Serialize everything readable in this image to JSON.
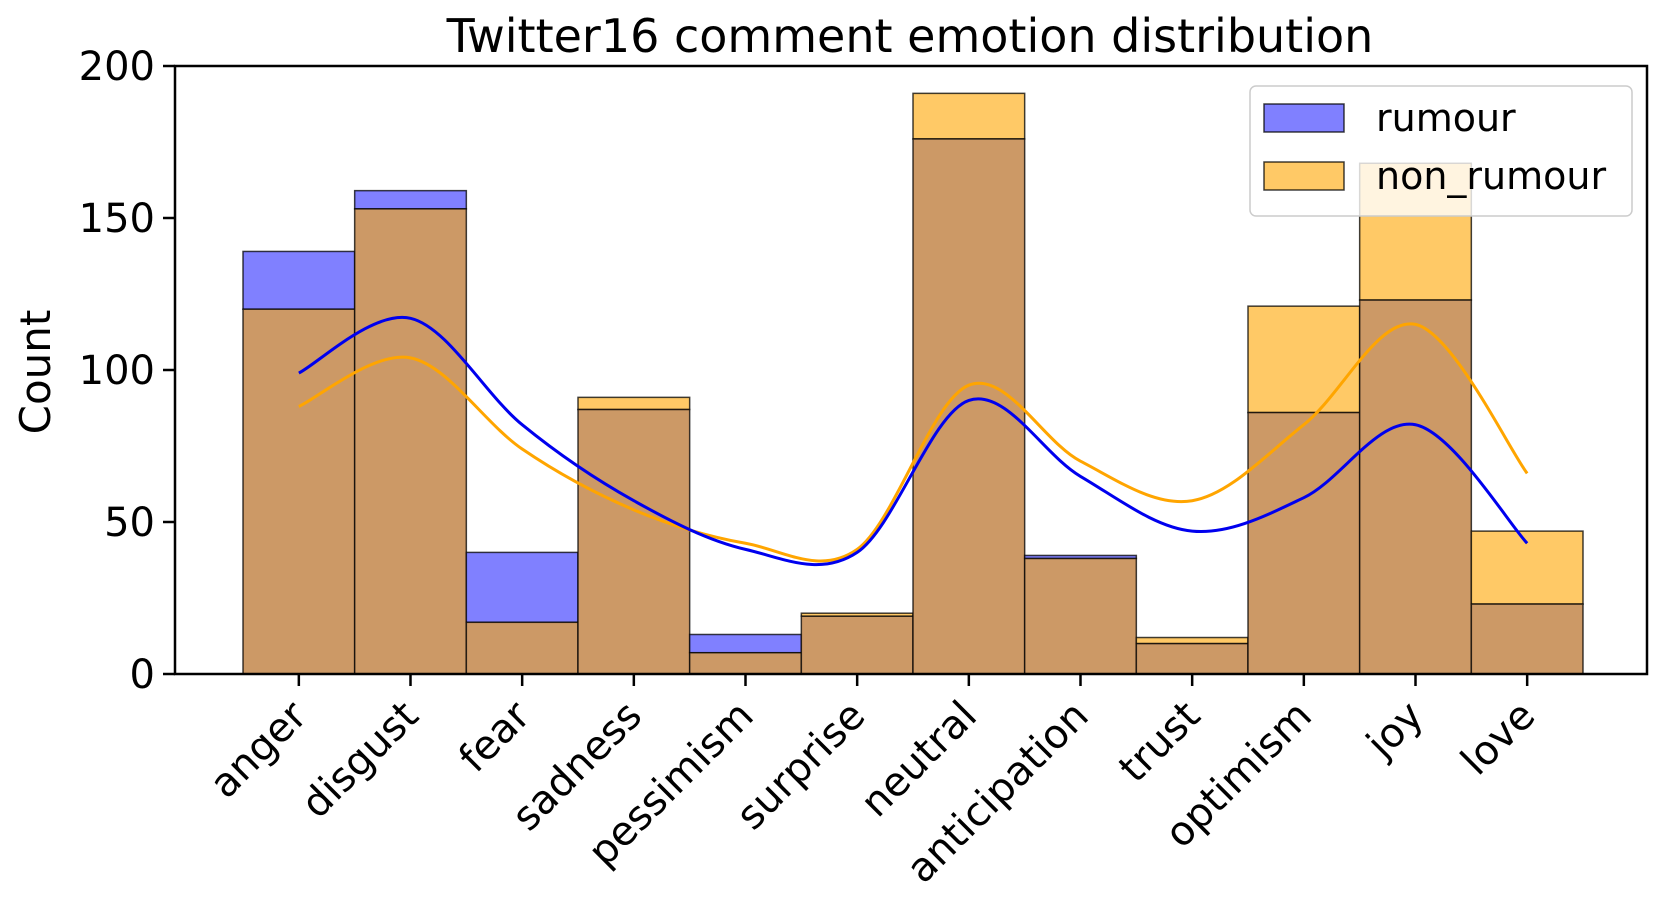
{
  "chart_data": {
    "type": "bar",
    "title": "Twitter16 comment emotion distribution",
    "xlabel": "",
    "ylabel": "Count",
    "ylim": [
      0,
      200
    ],
    "yticks": [
      0,
      50,
      100,
      150,
      200
    ],
    "categories": [
      "anger",
      "disgust",
      "fear",
      "sadness",
      "pessimism",
      "surprise",
      "neutral",
      "anticipation",
      "trust",
      "optimism",
      "joy",
      "love"
    ],
    "bins": 12,
    "series": [
      {
        "name": "rumour",
        "color": "#0000ff",
        "bar_color": "#8080ff",
        "kde_color": "#0000ee",
        "values": [
          139,
          159,
          40,
          87,
          13,
          19,
          176,
          39,
          10,
          86,
          123,
          23
        ],
        "kde": [
          99,
          117,
          82,
          57,
          41,
          40,
          90,
          65,
          47,
          58,
          82,
          43
        ]
      },
      {
        "name": "non_rumour",
        "color": "#ffa500",
        "bar_color": "#ffc966",
        "kde_color": "#ffa500",
        "values": [
          120,
          153,
          17,
          91,
          7,
          20,
          191,
          38,
          12,
          121,
          168,
          47
        ],
        "kde": [
          88,
          104,
          74,
          54,
          43,
          41,
          95,
          70,
          57,
          82,
          115,
          66
        ]
      }
    ],
    "overlap_color": "#cc9966",
    "legend": {
      "position": "top-right",
      "entries": [
        "rumour",
        "non_rumour"
      ]
    },
    "grid": false
  }
}
